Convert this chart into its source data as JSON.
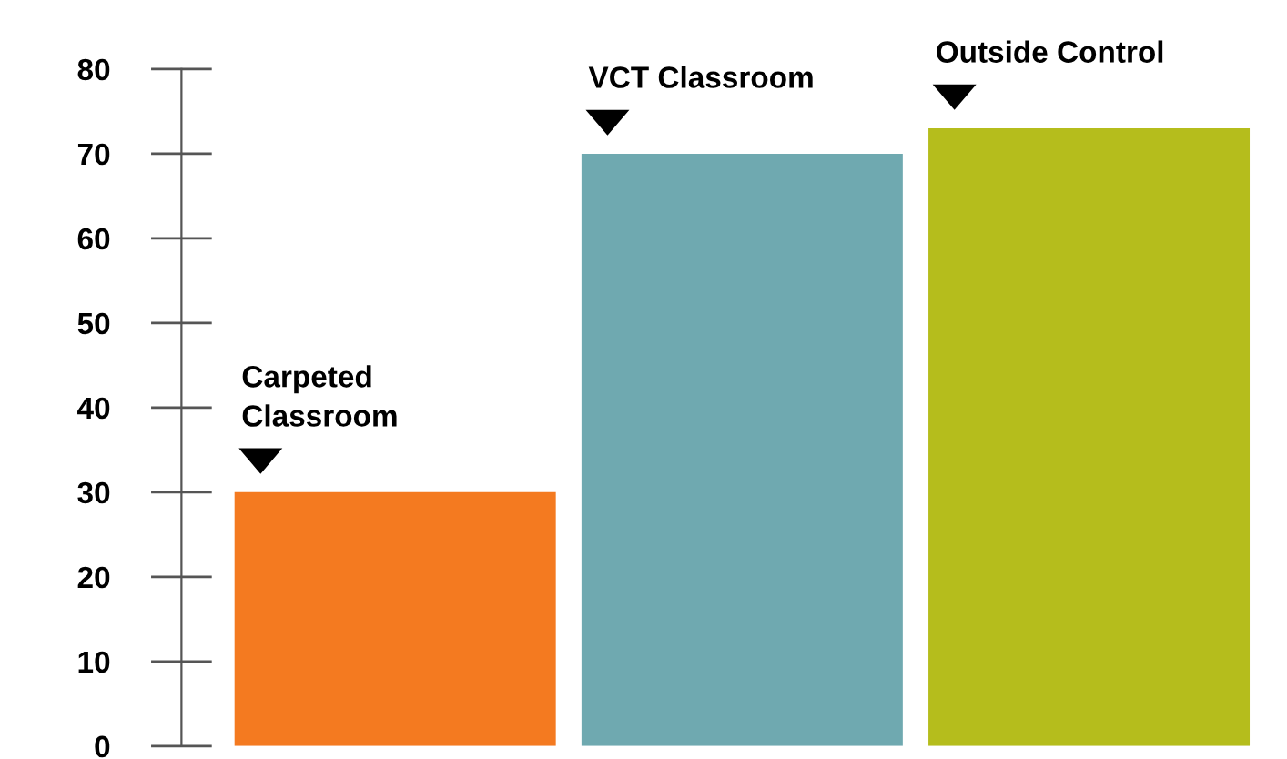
{
  "chart_data": {
    "type": "bar",
    "categories": [
      "Carpeted\nClassroom",
      "VCT Classroom",
      "Outside Control"
    ],
    "values": [
      30,
      70,
      73
    ],
    "colors": [
      "#f47a20",
      "#6fa9b0",
      "#b5bd1c"
    ],
    "ylim": [
      0,
      80
    ],
    "yticks": [
      0,
      10,
      20,
      30,
      40,
      50,
      60,
      70,
      80
    ],
    "grid": false,
    "legend": false
  }
}
